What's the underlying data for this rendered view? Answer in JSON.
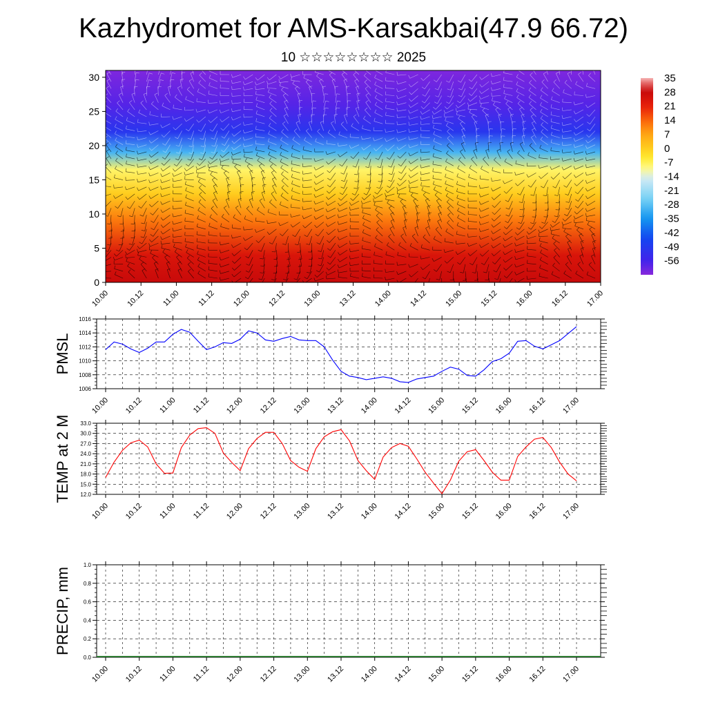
{
  "header": {
    "title": "Kazhydromet for AMS-Karsakbai(47.9 66.72)",
    "subtitle": "10 ☆☆☆☆☆☆☆☆ 2025"
  },
  "chart_data": [
    {
      "type": "heatmap",
      "title": "",
      "xlabel": "",
      "ylabel": "",
      "x_tick_labels": [
        "10.00",
        "10.12",
        "11.00",
        "11.12",
        "12.00",
        "12.12",
        "13.00",
        "13.12",
        "14.00",
        "14.12",
        "15.00",
        "15.12",
        "16.00",
        "16.12",
        "17.00"
      ],
      "ylim": [
        0,
        31
      ],
      "y_ticks": [
        0,
        5,
        10,
        15,
        20,
        25,
        30
      ],
      "colorbar": {
        "labels": [
          35,
          28,
          21,
          14,
          7,
          0,
          -7,
          -14,
          -21,
          -28,
          -35,
          -42,
          -49,
          -56
        ],
        "range": [
          -63,
          35
        ]
      },
      "overlay": "wind barbs",
      "color_profile": [
        {
          "height": 0,
          "value": 28
        },
        {
          "height": 4,
          "value": 24
        },
        {
          "height": 9,
          "value": 12
        },
        {
          "height": 13,
          "value": 0
        },
        {
          "height": 16.5,
          "value": -8
        },
        {
          "height": 19,
          "value": -30
        },
        {
          "height": 22,
          "value": -50
        },
        {
          "height": 26,
          "value": -58
        },
        {
          "height": 31,
          "value": -62
        }
      ]
    },
    {
      "type": "line",
      "ylabel": "PMSL",
      "ylim": [
        1006,
        1016
      ],
      "y_ticks": [
        1006,
        1008,
        1010,
        1012,
        1014,
        1016
      ],
      "x_tick_labels": [
        "10.00",
        "10.12",
        "11.00",
        "11.12",
        "12.00",
        "12.12",
        "13.00",
        "13.12",
        "14.00",
        "14.12",
        "15.00",
        "15.12",
        "16.00",
        "16.12",
        "17.00"
      ],
      "series": [
        {
          "color": "#0000ff",
          "values": [
            1011.6,
            1012.7,
            1012.4,
            1011.7,
            1011.2,
            1011.8,
            1012.7,
            1012.7,
            1013.8,
            1014.5,
            1014.1,
            1012.8,
            1011.6,
            1012.0,
            1012.6,
            1012.5,
            1013.1,
            1014.3,
            1014.0,
            1013.0,
            1012.8,
            1013.2,
            1013.5,
            1013.0,
            1012.9,
            1012.9,
            1012.0,
            1010.1,
            1008.5,
            1007.8,
            1007.6,
            1007.3,
            1007.5,
            1007.7,
            1007.5,
            1007.0,
            1006.9,
            1007.4,
            1007.6,
            1007.8,
            1008.5,
            1009.1,
            1008.8,
            1007.9,
            1007.8,
            1008.7,
            1009.9,
            1010.3,
            1011.1,
            1012.8,
            1012.9,
            1012.1,
            1011.7,
            1012.3,
            1012.9,
            1013.9,
            1014.9
          ]
        }
      ]
    },
    {
      "type": "line",
      "ylabel": "TEMP at 2 M",
      "ylim": [
        12,
        33
      ],
      "y_ticks": [
        "12.0",
        "15.0",
        "18.0",
        "21.0",
        "24.0",
        "27.0",
        "30.0",
        "33.0"
      ],
      "x_tick_labels": [
        "10.00",
        "10.12",
        "11.00",
        "11.12",
        "12.00",
        "12.12",
        "13.00",
        "13.12",
        "14.00",
        "14.12",
        "15.00",
        "15.12",
        "16.00",
        "16.12",
        "17.00"
      ],
      "series": [
        {
          "color": "#ff0000",
          "values": [
            17.0,
            21.5,
            25.0,
            27.2,
            28.0,
            26.0,
            21.0,
            18.2,
            18.3,
            25.8,
            29.5,
            31.4,
            31.7,
            30.0,
            24.2,
            21.4,
            19.0,
            25.5,
            28.5,
            30.3,
            30.3,
            27.0,
            22.0,
            20.0,
            18.8,
            25.5,
            29.0,
            30.5,
            31.1,
            27.8,
            22.0,
            19.0,
            16.4,
            23.0,
            25.8,
            27.0,
            26.2,
            22.5,
            18.5,
            15.3,
            12.2,
            16.2,
            21.8,
            24.6,
            25.2,
            22.0,
            18.5,
            16.2,
            16.2,
            23.2,
            26.0,
            28.3,
            28.8,
            25.8,
            21.5,
            18.0,
            16.0
          ]
        }
      ]
    },
    {
      "type": "bar",
      "ylabel": "PRECIP, mm",
      "ylim": [
        0,
        1
      ],
      "y_ticks": [
        "0.0",
        "0.2",
        "0.4",
        "0.6",
        "0.8",
        "1.0"
      ],
      "x_tick_labels": [
        "10.00",
        "10.12",
        "11.00",
        "11.12",
        "12.00",
        "12.12",
        "13.00",
        "13.12",
        "14.00",
        "14.12",
        "15.00",
        "15.12",
        "16.00",
        "16.12",
        "17.00"
      ],
      "values": []
    }
  ]
}
